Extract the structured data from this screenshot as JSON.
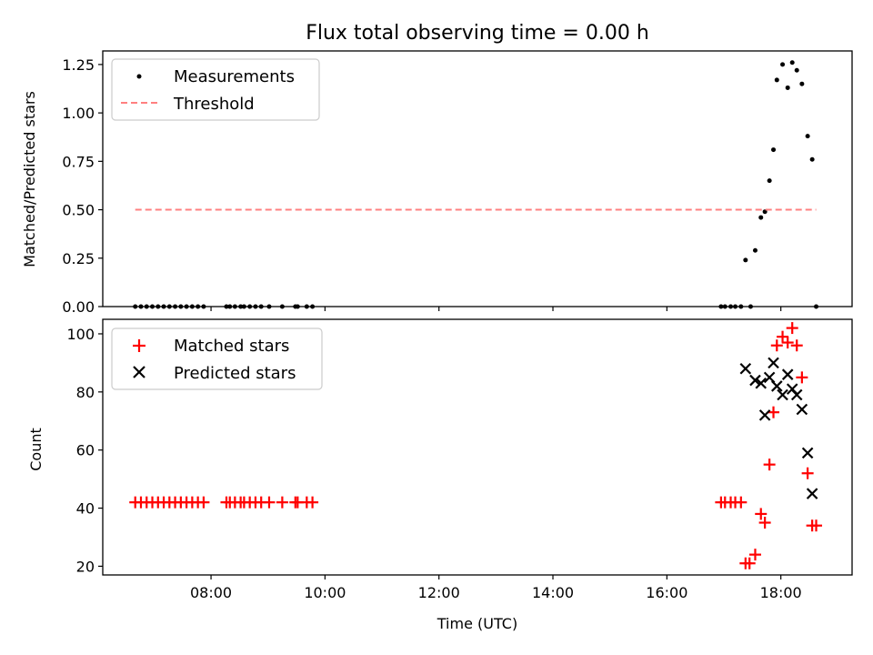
{
  "chart_data": [
    {
      "type": "scatter",
      "title": "Flux total observing time = 0.00 h",
      "xlabel": "",
      "ylabel": "Matched/Predicted stars",
      "ylim": [
        0,
        1.32
      ],
      "xlim": [
        6.1,
        19.25
      ],
      "yticks": [
        0.0,
        0.25,
        0.5,
        0.75,
        1.0,
        1.25
      ],
      "ytick_labels": [
        "0.00",
        "0.25",
        "0.50",
        "0.75",
        "1.00",
        "1.25"
      ],
      "legend_position": "top-left",
      "grid": false,
      "series": [
        {
          "name": "Measurements",
          "kind": "points",
          "color": "#000000",
          "x": [
            6.67,
            6.77,
            6.87,
            6.97,
            7.07,
            7.17,
            7.27,
            7.37,
            7.47,
            7.57,
            7.67,
            7.77,
            7.87,
            8.27,
            8.33,
            8.42,
            8.52,
            8.58,
            8.68,
            8.78,
            8.88,
            9.02,
            9.25,
            9.48,
            9.52,
            9.68,
            9.78,
            16.95,
            17.02,
            17.12,
            17.2,
            17.3,
            17.38,
            17.47,
            17.55,
            17.65,
            17.72,
            17.8,
            17.87,
            17.93,
            18.03,
            18.12,
            18.2,
            18.28,
            18.37,
            18.47,
            18.55,
            18.62
          ],
          "y": [
            0,
            0,
            0,
            0,
            0,
            0,
            0,
            0,
            0,
            0,
            0,
            0,
            0,
            0,
            0,
            0,
            0,
            0,
            0,
            0,
            0,
            0,
            0,
            0,
            0,
            0,
            0,
            0,
            0,
            0,
            0,
            0,
            0.24,
            0,
            0.29,
            0.46,
            0.49,
            0.65,
            0.81,
            1.17,
            1.25,
            1.13,
            1.26,
            1.22,
            1.15,
            0.88,
            0.76,
            0
          ]
        },
        {
          "name": "Threshold",
          "kind": "dashed-line",
          "color": "#ff8080",
          "x": [
            6.67,
            18.62
          ],
          "y": [
            0.5,
            0.5
          ]
        }
      ]
    },
    {
      "type": "scatter",
      "title": "",
      "xlabel": "Time (UTC)",
      "ylabel": "Count",
      "ylim": [
        17,
        105
      ],
      "xlim": [
        6.1,
        19.25
      ],
      "yticks": [
        20,
        40,
        60,
        80,
        100
      ],
      "ytick_labels": [
        "20",
        "40",
        "60",
        "80",
        "100"
      ],
      "xticks": [
        8,
        10,
        12,
        14,
        16,
        18
      ],
      "xtick_labels": [
        "08:00",
        "10:00",
        "12:00",
        "14:00",
        "16:00",
        "18:00"
      ],
      "legend_position": "top-left",
      "grid": false,
      "series": [
        {
          "name": "Matched stars",
          "marker": "plus",
          "color": "#ff0000",
          "x": [
            6.67,
            6.77,
            6.87,
            6.97,
            7.07,
            7.17,
            7.27,
            7.37,
            7.47,
            7.57,
            7.67,
            7.77,
            7.87,
            8.27,
            8.33,
            8.42,
            8.52,
            8.58,
            8.68,
            8.78,
            8.88,
            9.02,
            9.25,
            9.48,
            9.52,
            9.68,
            9.78,
            16.95,
            17.02,
            17.12,
            17.2,
            17.3,
            17.38,
            17.45,
            17.55,
            17.65,
            17.72,
            17.8,
            17.87,
            17.93,
            18.03,
            18.12,
            18.2,
            18.28,
            18.37,
            18.47,
            18.55,
            18.62
          ],
          "y": [
            42,
            42,
            42,
            42,
            42,
            42,
            42,
            42,
            42,
            42,
            42,
            42,
            42,
            42,
            42,
            42,
            42,
            42,
            42,
            42,
            42,
            42,
            42,
            42,
            42,
            42,
            42,
            42,
            42,
            42,
            42,
            42,
            21,
            21,
            24,
            38,
            35,
            55,
            73,
            96,
            99,
            97,
            102,
            96,
            85,
            52,
            34,
            34
          ]
        },
        {
          "name": "Predicted stars",
          "marker": "x",
          "color": "#000000",
          "x": [
            17.38,
            17.55,
            17.65,
            17.72,
            17.8,
            17.87,
            17.93,
            18.03,
            18.12,
            18.2,
            18.28,
            18.37,
            18.47,
            18.55
          ],
          "y": [
            88,
            84,
            83,
            72,
            85,
            90,
            82,
            79,
            86,
            81,
            79,
            74,
            59,
            45
          ]
        }
      ]
    }
  ]
}
